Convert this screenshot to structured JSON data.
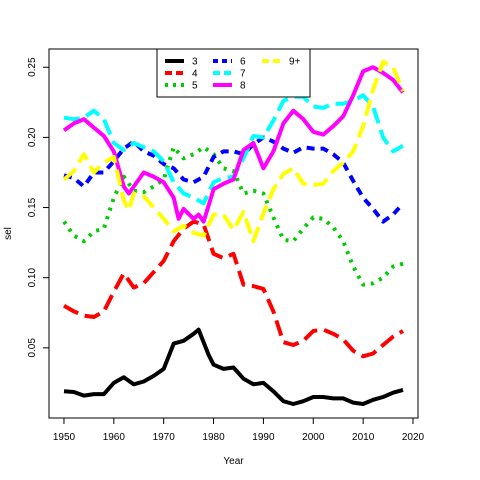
{
  "chart_data": {
    "type": "line",
    "xlabel": "Year",
    "ylabel": "sel",
    "xlim": [
      1947,
      2021
    ],
    "ylim": [
      0.0,
      0.263
    ],
    "xticks": [
      1950,
      1960,
      1970,
      1980,
      1990,
      2000,
      2010,
      2020
    ],
    "yticks": [
      0.05,
      0.1,
      0.15,
      0.2,
      0.25
    ],
    "ytick_labels": [
      "0.05",
      "0.10",
      "0.15",
      "0.20",
      "0.25"
    ],
    "legend_position": "top-center",
    "series": [
      {
        "name": "3",
        "color": "#000000",
        "dash": "solid",
        "points": [
          [
            1950,
            0.019
          ],
          [
            1952,
            0.0185
          ],
          [
            1954,
            0.016
          ],
          [
            1956,
            0.017
          ],
          [
            1958,
            0.017
          ],
          [
            1960,
            0.025
          ],
          [
            1962,
            0.029
          ],
          [
            1964,
            0.024
          ],
          [
            1966,
            0.026
          ],
          [
            1968,
            0.03
          ],
          [
            1970,
            0.035
          ],
          [
            1972,
            0.053
          ],
          [
            1974,
            0.055
          ],
          [
            1976,
            0.06
          ],
          [
            1977,
            0.063
          ],
          [
            1979,
            0.045
          ],
          [
            1980,
            0.038
          ],
          [
            1982,
            0.035
          ],
          [
            1984,
            0.036
          ],
          [
            1986,
            0.028
          ],
          [
            1988,
            0.024
          ],
          [
            1990,
            0.025
          ],
          [
            1992,
            0.019
          ],
          [
            1994,
            0.012
          ],
          [
            1996,
            0.01
          ],
          [
            1998,
            0.012
          ],
          [
            2000,
            0.015
          ],
          [
            2002,
            0.015
          ],
          [
            2004,
            0.014
          ],
          [
            2006,
            0.014
          ],
          [
            2008,
            0.011
          ],
          [
            2010,
            0.01
          ],
          [
            2012,
            0.013
          ],
          [
            2014,
            0.015
          ],
          [
            2016,
            0.018
          ],
          [
            2018,
            0.02
          ]
        ]
      },
      {
        "name": "4",
        "color": "#ff0000",
        "dash": "long",
        "points": [
          [
            1950,
            0.08
          ],
          [
            1952,
            0.076
          ],
          [
            1954,
            0.073
          ],
          [
            1956,
            0.072
          ],
          [
            1958,
            0.076
          ],
          [
            1960,
            0.09
          ],
          [
            1962,
            0.103
          ],
          [
            1964,
            0.093
          ],
          [
            1966,
            0.096
          ],
          [
            1968,
            0.104
          ],
          [
            1970,
            0.112
          ],
          [
            1972,
            0.126
          ],
          [
            1974,
            0.135
          ],
          [
            1976,
            0.14
          ],
          [
            1978,
            0.138
          ],
          [
            1980,
            0.117
          ],
          [
            1982,
            0.114
          ],
          [
            1984,
            0.117
          ],
          [
            1986,
            0.095
          ],
          [
            1988,
            0.094
          ],
          [
            1990,
            0.092
          ],
          [
            1992,
            0.076
          ],
          [
            1994,
            0.054
          ],
          [
            1996,
            0.052
          ],
          [
            1998,
            0.055
          ],
          [
            2000,
            0.062
          ],
          [
            2002,
            0.063
          ],
          [
            2004,
            0.06
          ],
          [
            2006,
            0.056
          ],
          [
            2008,
            0.048
          ],
          [
            2010,
            0.044
          ],
          [
            2012,
            0.046
          ],
          [
            2014,
            0.052
          ],
          [
            2016,
            0.058
          ],
          [
            2018,
            0.062
          ]
        ]
      },
      {
        "name": "5",
        "color": "#00cd00",
        "dash": "dotted",
        "points": [
          [
            1950,
            0.14
          ],
          [
            1952,
            0.13
          ],
          [
            1954,
            0.126
          ],
          [
            1956,
            0.133
          ],
          [
            1958,
            0.135
          ],
          [
            1960,
            0.157
          ],
          [
            1962,
            0.172
          ],
          [
            1964,
            0.162
          ],
          [
            1966,
            0.161
          ],
          [
            1968,
            0.165
          ],
          [
            1970,
            0.17
          ],
          [
            1972,
            0.193
          ],
          [
            1974,
            0.185
          ],
          [
            1976,
            0.188
          ],
          [
            1978,
            0.193
          ],
          [
            1980,
            0.188
          ],
          [
            1982,
            0.178
          ],
          [
            1984,
            0.176
          ],
          [
            1986,
            0.16
          ],
          [
            1988,
            0.162
          ],
          [
            1990,
            0.16
          ],
          [
            1992,
            0.143
          ],
          [
            1994,
            0.127
          ],
          [
            1996,
            0.126
          ],
          [
            1998,
            0.135
          ],
          [
            2000,
            0.143
          ],
          [
            2002,
            0.142
          ],
          [
            2004,
            0.136
          ],
          [
            2006,
            0.126
          ],
          [
            2008,
            0.108
          ],
          [
            2010,
            0.095
          ],
          [
            2012,
            0.096
          ],
          [
            2014,
            0.1
          ],
          [
            2016,
            0.108
          ],
          [
            2018,
            0.11
          ]
        ]
      },
      {
        "name": "6",
        "color": "#0000ff",
        "dash": "short",
        "points": [
          [
            1950,
            0.173
          ],
          [
            1952,
            0.171
          ],
          [
            1954,
            0.165
          ],
          [
            1956,
            0.175
          ],
          [
            1958,
            0.175
          ],
          [
            1960,
            0.183
          ],
          [
            1962,
            0.192
          ],
          [
            1964,
            0.197
          ],
          [
            1966,
            0.19
          ],
          [
            1968,
            0.187
          ],
          [
            1970,
            0.181
          ],
          [
            1972,
            0.178
          ],
          [
            1974,
            0.17
          ],
          [
            1976,
            0.168
          ],
          [
            1978,
            0.172
          ],
          [
            1980,
            0.186
          ],
          [
            1982,
            0.19
          ],
          [
            1984,
            0.19
          ],
          [
            1986,
            0.188
          ],
          [
            1988,
            0.195
          ],
          [
            1990,
            0.2
          ],
          [
            1992,
            0.197
          ],
          [
            1994,
            0.192
          ],
          [
            1996,
            0.189
          ],
          [
            1998,
            0.193
          ],
          [
            2000,
            0.192
          ],
          [
            2002,
            0.192
          ],
          [
            2004,
            0.188
          ],
          [
            2006,
            0.182
          ],
          [
            2008,
            0.169
          ],
          [
            2010,
            0.157
          ],
          [
            2012,
            0.149
          ],
          [
            2014,
            0.14
          ],
          [
            2016,
            0.145
          ],
          [
            2018,
            0.153
          ]
        ]
      },
      {
        "name": "7",
        "color": "#00ffff",
        "dash": "long",
        "points": [
          [
            1950,
            0.214
          ],
          [
            1952,
            0.213
          ],
          [
            1954,
            0.214
          ],
          [
            1956,
            0.219
          ],
          [
            1958,
            0.213
          ],
          [
            1960,
            0.196
          ],
          [
            1962,
            0.191
          ],
          [
            1964,
            0.196
          ],
          [
            1966,
            0.193
          ],
          [
            1968,
            0.19
          ],
          [
            1970,
            0.183
          ],
          [
            1972,
            0.168
          ],
          [
            1974,
            0.16
          ],
          [
            1976,
            0.157
          ],
          [
            1978,
            0.153
          ],
          [
            1980,
            0.168
          ],
          [
            1982,
            0.171
          ],
          [
            1984,
            0.172
          ],
          [
            1986,
            0.185
          ],
          [
            1988,
            0.201
          ],
          [
            1990,
            0.2
          ],
          [
            1992,
            0.212
          ],
          [
            1994,
            0.226
          ],
          [
            1996,
            0.229
          ],
          [
            1998,
            0.229
          ],
          [
            2000,
            0.222
          ],
          [
            2002,
            0.221
          ],
          [
            2004,
            0.224
          ],
          [
            2006,
            0.224
          ],
          [
            2008,
            0.226
          ],
          [
            2010,
            0.23
          ],
          [
            2012,
            0.222
          ],
          [
            2014,
            0.2
          ],
          [
            2016,
            0.19
          ],
          [
            2018,
            0.194
          ]
        ]
      },
      {
        "name": "8",
        "color": "#ff00ff",
        "dash": "solid",
        "points": [
          [
            1950,
            0.205
          ],
          [
            1952,
            0.21
          ],
          [
            1954,
            0.213
          ],
          [
            1956,
            0.207
          ],
          [
            1958,
            0.201
          ],
          [
            1960,
            0.19
          ],
          [
            1962,
            0.165
          ],
          [
            1963,
            0.16
          ],
          [
            1964,
            0.165
          ],
          [
            1966,
            0.175
          ],
          [
            1968,
            0.172
          ],
          [
            1970,
            0.168
          ],
          [
            1972,
            0.157
          ],
          [
            1973,
            0.142
          ],
          [
            1974,
            0.149
          ],
          [
            1976,
            0.142
          ],
          [
            1977,
            0.145
          ],
          [
            1978,
            0.14
          ],
          [
            1980,
            0.163
          ],
          [
            1982,
            0.167
          ],
          [
            1984,
            0.17
          ],
          [
            1986,
            0.191
          ],
          [
            1988,
            0.196
          ],
          [
            1989,
            0.187
          ],
          [
            1990,
            0.178
          ],
          [
            1992,
            0.19
          ],
          [
            1994,
            0.21
          ],
          [
            1996,
            0.219
          ],
          [
            1998,
            0.213
          ],
          [
            2000,
            0.204
          ],
          [
            2002,
            0.202
          ],
          [
            2004,
            0.208
          ],
          [
            2006,
            0.215
          ],
          [
            2008,
            0.23
          ],
          [
            2010,
            0.247
          ],
          [
            2012,
            0.25
          ],
          [
            2014,
            0.246
          ],
          [
            2016,
            0.241
          ],
          [
            2018,
            0.232
          ]
        ]
      },
      {
        "name": "9+",
        "color": "#ffff00",
        "dash": "long",
        "points": [
          [
            1950,
            0.17
          ],
          [
            1952,
            0.176
          ],
          [
            1954,
            0.188
          ],
          [
            1956,
            0.175
          ],
          [
            1958,
            0.182
          ],
          [
            1960,
            0.186
          ],
          [
            1962,
            0.155
          ],
          [
            1963,
            0.148
          ],
          [
            1964,
            0.16
          ],
          [
            1966,
            0.158
          ],
          [
            1968,
            0.15
          ],
          [
            1970,
            0.142
          ],
          [
            1972,
            0.133
          ],
          [
            1974,
            0.137
          ],
          [
            1976,
            0.132
          ],
          [
            1978,
            0.13
          ],
          [
            1980,
            0.145
          ],
          [
            1982,
            0.145
          ],
          [
            1984,
            0.134
          ],
          [
            1986,
            0.147
          ],
          [
            1988,
            0.126
          ],
          [
            1990,
            0.146
          ],
          [
            1992,
            0.163
          ],
          [
            1994,
            0.174
          ],
          [
            1996,
            0.178
          ],
          [
            1998,
            0.167
          ],
          [
            2000,
            0.166
          ],
          [
            2002,
            0.167
          ],
          [
            2004,
            0.176
          ],
          [
            2006,
            0.182
          ],
          [
            2008,
            0.19
          ],
          [
            2010,
            0.208
          ],
          [
            2012,
            0.234
          ],
          [
            2014,
            0.254
          ],
          [
            2016,
            0.25
          ],
          [
            2018,
            0.233
          ]
        ]
      }
    ]
  }
}
